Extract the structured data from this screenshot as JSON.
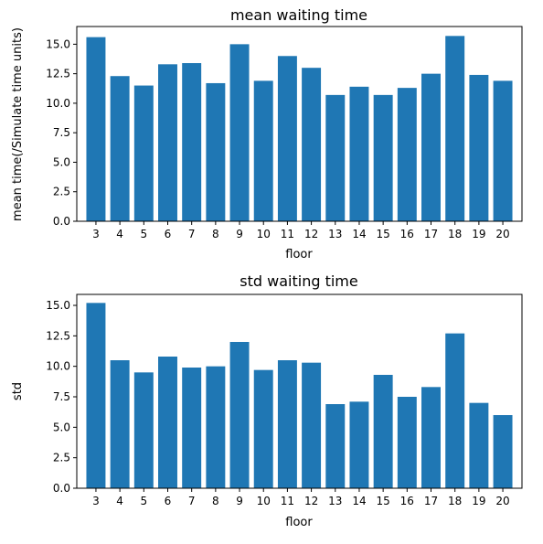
{
  "charts": [
    {
      "title": "mean waiting time",
      "xlabel": "floor",
      "ylabel": "mean time(/Simulate time units)",
      "ylim": [
        0,
        16.5
      ],
      "yticks": [
        0.0,
        2.5,
        5.0,
        7.5,
        10.0,
        12.5,
        15.0
      ],
      "ytick_labels": [
        "0.0",
        "2.5",
        "5.0",
        "7.5",
        "10.0",
        "12.5",
        "15.0"
      ],
      "xtick_labels": [
        "3",
        "4",
        "5",
        "6",
        "7",
        "8",
        "9",
        "10",
        "11",
        "12",
        "13",
        "14",
        "15",
        "16",
        "17",
        "18",
        "19",
        "20"
      ]
    },
    {
      "title": "std waiting time",
      "xlabel": "floor",
      "ylabel": "std",
      "ylim": [
        0,
        15.9
      ],
      "yticks": [
        0.0,
        2.5,
        5.0,
        7.5,
        10.0,
        12.5,
        15.0
      ],
      "ytick_labels": [
        "0.0",
        "2.5",
        "5.0",
        "7.5",
        "10.0",
        "12.5",
        "15.0"
      ],
      "xtick_labels": [
        "3",
        "4",
        "5",
        "6",
        "7",
        "8",
        "9",
        "10",
        "11",
        "12",
        "13",
        "14",
        "15",
        "16",
        "17",
        "18",
        "19",
        "20"
      ]
    }
  ],
  "chart_data": [
    {
      "type": "bar",
      "title": "mean waiting time",
      "xlabel": "floor",
      "ylabel": "mean time(/Simulate time units)",
      "categories": [
        3,
        4,
        5,
        6,
        7,
        8,
        9,
        10,
        11,
        12,
        13,
        14,
        15,
        16,
        17,
        18,
        19,
        20
      ],
      "values": [
        15.6,
        12.3,
        11.5,
        13.3,
        13.4,
        11.7,
        15.0,
        11.9,
        14.0,
        13.0,
        10.7,
        11.4,
        10.7,
        11.3,
        12.5,
        15.7,
        12.4,
        11.9
      ],
      "ylim": [
        0,
        16.5
      ],
      "grid": false,
      "color": "#1f77b4"
    },
    {
      "type": "bar",
      "title": "std waiting time",
      "xlabel": "floor",
      "ylabel": "std",
      "categories": [
        3,
        4,
        5,
        6,
        7,
        8,
        9,
        10,
        11,
        12,
        13,
        14,
        15,
        16,
        17,
        18,
        19,
        20
      ],
      "values": [
        15.2,
        10.5,
        9.5,
        10.8,
        9.9,
        10.0,
        12.0,
        9.7,
        10.5,
        10.3,
        6.9,
        7.1,
        9.3,
        7.5,
        8.3,
        12.7,
        7.0,
        6.0
      ],
      "ylim": [
        0,
        15.9
      ],
      "grid": false,
      "color": "#1f77b4"
    }
  ]
}
